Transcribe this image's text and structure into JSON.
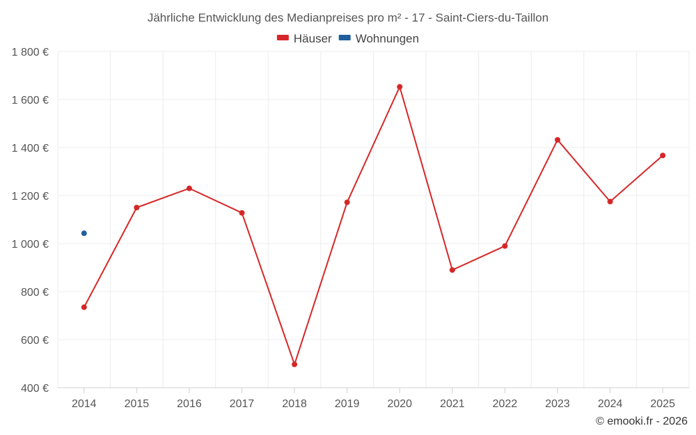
{
  "chart_data": {
    "type": "line",
    "title": "Jährliche Entwicklung des Medianpreises pro m² - 17 - Saint-Ciers-du-Taillon",
    "categories": [
      "2014",
      "2015",
      "2016",
      "2017",
      "2018",
      "2019",
      "2020",
      "2021",
      "2022",
      "2023",
      "2024",
      "2025"
    ],
    "series": [
      {
        "name": "Häuser",
        "color": "#d62728",
        "values": [
          735,
          1150,
          1230,
          1128,
          497,
          1172,
          1653,
          890,
          990,
          1432,
          1175,
          1367
        ]
      },
      {
        "name": "Wohnungen",
        "color": "#1f5f9e",
        "values": [
          1043,
          null,
          null,
          null,
          null,
          null,
          null,
          null,
          null,
          null,
          null,
          null
        ]
      }
    ],
    "ylim": [
      400,
      1800
    ],
    "yticks": [
      400,
      600,
      800,
      1000,
      1200,
      1400,
      1600,
      1800
    ],
    "ytick_labels": [
      "400 €",
      "600 €",
      "800 €",
      "1 000 €",
      "1 200 €",
      "1 400 €",
      "1 600 €",
      "1 800 €"
    ],
    "grid": true,
    "legend": "top-center",
    "xlabel": "",
    "ylabel": ""
  },
  "credit": "© emooki.fr - 2026"
}
